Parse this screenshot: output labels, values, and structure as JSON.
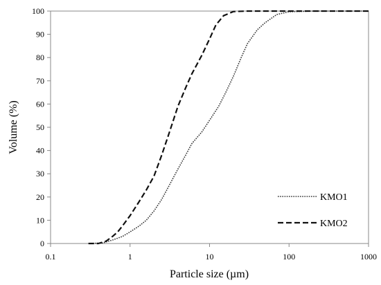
{
  "chart_data": {
    "type": "line",
    "xlabel": "Particle size (µm)",
    "ylabel": "Volume (%)",
    "x_scale": "log",
    "xlim": [
      0.1,
      1000
    ],
    "ylim": [
      0,
      100
    ],
    "x_ticks": [
      "0.1",
      "1",
      "10",
      "100",
      "1000"
    ],
    "y_ticks": [
      "0",
      "10",
      "20",
      "30",
      "40",
      "50",
      "60",
      "70",
      "80",
      "90",
      "100"
    ],
    "grid": false,
    "legend_position": "bottom-right",
    "series": [
      {
        "name": "KMO1",
        "style": "dotted",
        "color": "#333333",
        "points": [
          [
            0.3,
            0
          ],
          [
            0.45,
            0.2
          ],
          [
            0.6,
            1.5
          ],
          [
            0.8,
            3
          ],
          [
            1,
            5
          ],
          [
            1.3,
            7.5
          ],
          [
            1.6,
            10
          ],
          [
            2,
            14
          ],
          [
            2.5,
            19
          ],
          [
            3,
            24
          ],
          [
            4,
            32
          ],
          [
            5,
            38
          ],
          [
            6,
            43
          ],
          [
            8,
            48
          ],
          [
            10,
            53
          ],
          [
            13,
            59
          ],
          [
            16,
            65
          ],
          [
            20,
            72
          ],
          [
            25,
            80
          ],
          [
            30,
            86
          ],
          [
            40,
            92
          ],
          [
            50,
            95
          ],
          [
            70,
            98.5
          ],
          [
            100,
            99.7
          ],
          [
            200,
            100
          ],
          [
            1000,
            100
          ]
        ]
      },
      {
        "name": "KMO2",
        "style": "dashed",
        "color": "#111111",
        "points": [
          [
            0.3,
            0
          ],
          [
            0.4,
            0
          ],
          [
            0.5,
            1
          ],
          [
            0.6,
            3
          ],
          [
            0.7,
            5
          ],
          [
            0.8,
            7.5
          ],
          [
            1,
            12
          ],
          [
            1.3,
            18
          ],
          [
            1.6,
            23
          ],
          [
            2,
            29
          ],
          [
            2.5,
            38
          ],
          [
            3,
            46
          ],
          [
            4,
            59
          ],
          [
            5,
            67
          ],
          [
            6,
            73
          ],
          [
            8,
            81
          ],
          [
            10,
            88
          ],
          [
            12,
            94
          ],
          [
            15,
            98
          ],
          [
            20,
            99.8
          ],
          [
            30,
            100
          ],
          [
            1000,
            100
          ]
        ]
      }
    ]
  }
}
